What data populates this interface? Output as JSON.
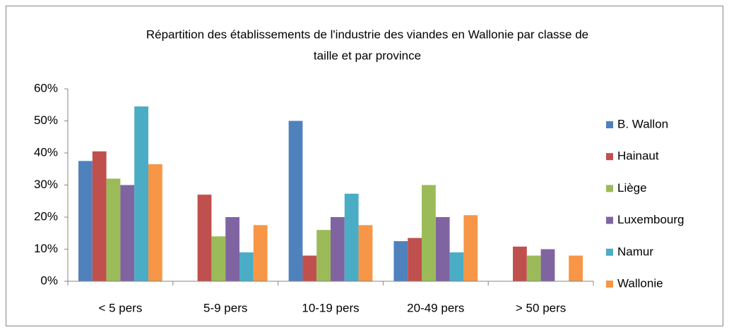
{
  "chart_data": {
    "type": "bar",
    "title": [
      "Répartition des établissements de l'industrie des viandes en Wallonie par classe de",
      "taille et par province"
    ],
    "categories": [
      "< 5 pers",
      "5-9 pers",
      "10-19 pers",
      "20-49 pers",
      "> 50 pers"
    ],
    "series": [
      {
        "name": "B. Wallon",
        "color": "#4f81bd",
        "values": [
          37.5,
          0,
          50,
          12.5,
          0
        ]
      },
      {
        "name": "Hainaut",
        "color": "#c0504d",
        "values": [
          40.5,
          27,
          8,
          13.5,
          10.8
        ]
      },
      {
        "name": "Liège",
        "color": "#9bbb59",
        "values": [
          32,
          14,
          16,
          30,
          8
        ]
      },
      {
        "name": "Luxembourg",
        "color": "#8064a2",
        "values": [
          30,
          20,
          20,
          20,
          10
        ]
      },
      {
        "name": "Namur",
        "color": "#4bacc6",
        "values": [
          54.5,
          9,
          27.3,
          9,
          0
        ]
      },
      {
        "name": "Wallonie",
        "color": "#f79646",
        "values": [
          36.5,
          17.5,
          17.5,
          20.6,
          8
        ]
      }
    ],
    "ylim": [
      0,
      60
    ],
    "yticks": [
      {
        "value": 0,
        "label": "0%"
      },
      {
        "value": 10,
        "label": "10%"
      },
      {
        "value": 20,
        "label": "20%"
      },
      {
        "value": 30,
        "label": "30%"
      },
      {
        "value": 40,
        "label": "40%"
      },
      {
        "value": 50,
        "label": "50%"
      },
      {
        "value": 60,
        "label": "60%"
      }
    ],
    "legend": "right",
    "grid": false
  }
}
